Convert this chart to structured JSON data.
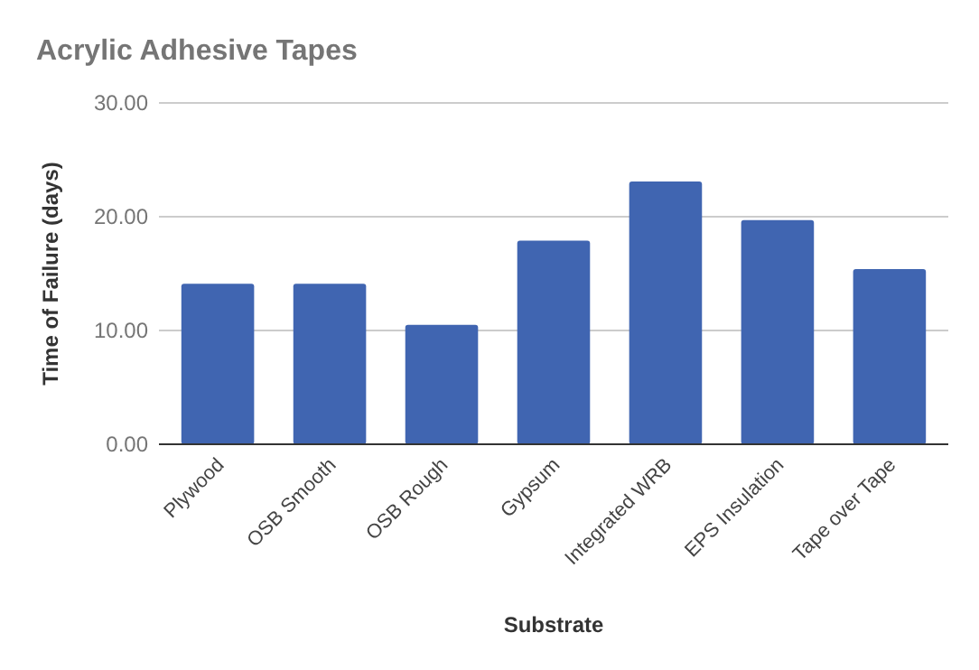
{
  "chart_data": {
    "type": "bar",
    "title": "Acrylic Adhesive Tapes",
    "xlabel": "Substrate",
    "ylabel": "Time of Failure (days)",
    "categories": [
      "Plywood",
      "OSB Smooth",
      "OSB Rough",
      "Gypsum",
      "Integrated WRB",
      "EPS Insulation",
      "Tape over Tape"
    ],
    "values": [
      14.1,
      14.1,
      10.5,
      17.9,
      23.1,
      19.7,
      15.4
    ],
    "color": "#4065b1",
    "ylim": [
      0,
      30
    ],
    "yticks": [
      {
        "value": 0,
        "label": "0.00"
      },
      {
        "value": 10,
        "label": "10.00"
      },
      {
        "value": 20,
        "label": "20.00"
      },
      {
        "value": 30,
        "label": "30.00"
      }
    ],
    "grid": true
  }
}
